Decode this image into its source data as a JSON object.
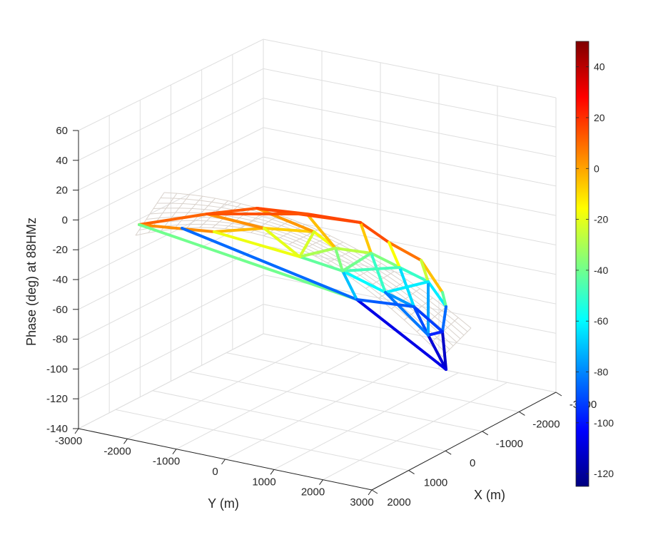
{
  "chart_data": {
    "type": "3d-line-surface",
    "zlabel": "Phase (deg) at 88HMz",
    "xlabel": "X (m)",
    "ylabel": "Y (m)",
    "zlim": [
      -140,
      60
    ],
    "xlim": [
      -3000,
      2000
    ],
    "ylim": [
      -3000,
      3000
    ],
    "z_ticks": [
      "60",
      "40",
      "20",
      "0",
      "-20",
      "-40",
      "-60",
      "-80",
      "-100",
      "-120",
      "-140"
    ],
    "y_ticks": [
      "-3000",
      "-2000",
      "-1000",
      "0",
      "1000",
      "2000",
      "3000"
    ],
    "x_ticks": [
      "-3000",
      "-2000",
      "-1000",
      "0",
      "1000",
      "2000"
    ],
    "colorbar": {
      "range": [
        -125,
        50
      ],
      "ticks": [
        "40",
        "20",
        "0",
        "-20",
        "-40",
        "-60",
        "-80",
        "-100",
        "-120"
      ],
      "colormap": "jet"
    },
    "grid": true,
    "surface": "reference wireframe mesh (light gray)",
    "network": "colored element edges (phase)"
  }
}
